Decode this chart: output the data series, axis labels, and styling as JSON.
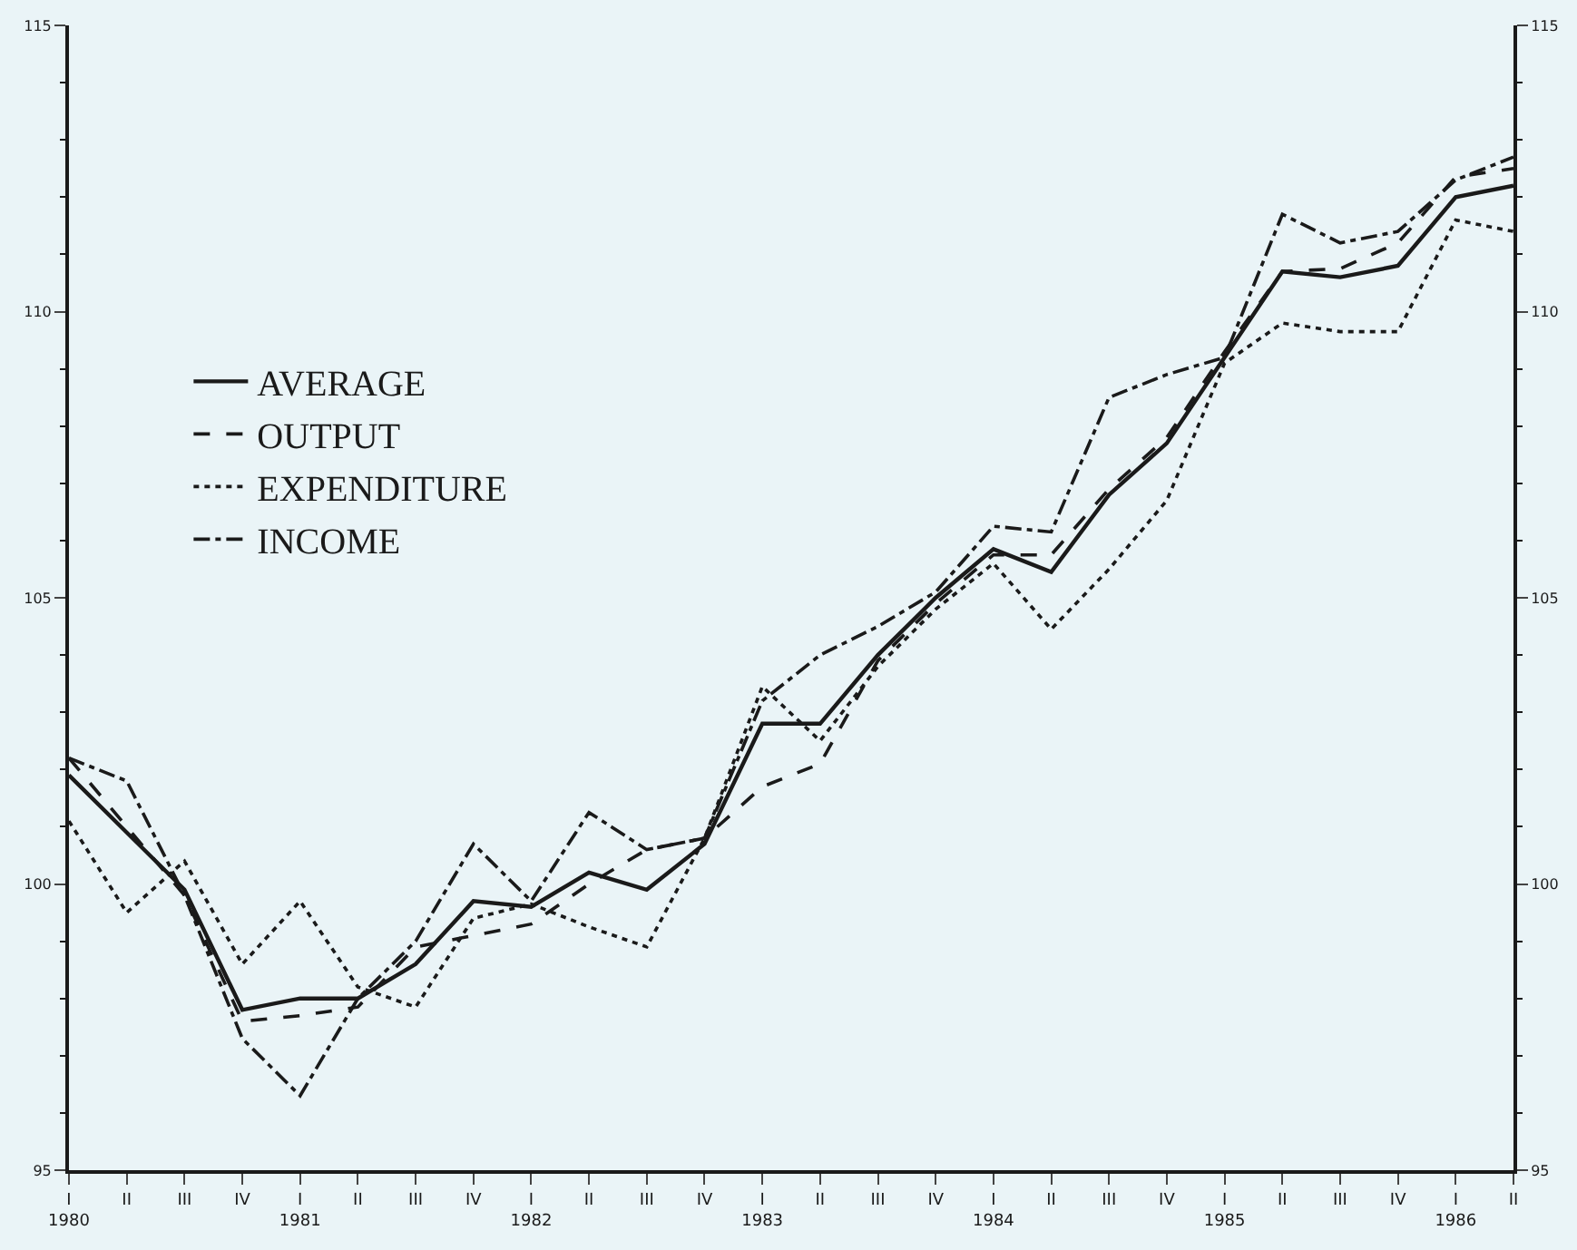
{
  "chart_data": {
    "type": "line",
    "categories": [
      "I\n1980",
      "II",
      "III",
      "IV",
      "I\n1981",
      "II",
      "III",
      "IV",
      "I\n1982",
      "II",
      "III",
      "IV",
      "I\n1983",
      "II",
      "III",
      "IV",
      "I\n1984",
      "II",
      "III",
      "IV",
      "I\n1985",
      "II",
      "III",
      "IV",
      "I\n1986",
      "II"
    ],
    "series": [
      {
        "name": "AVERAGE",
        "color": "#1a1a1a",
        "line_style": "solid",
        "values": [
          101.9,
          100.9,
          99.9,
          97.8,
          98.0,
          98.0,
          98.6,
          99.7,
          99.6,
          100.2,
          99.9,
          100.7,
          102.8,
          102.8,
          104.0,
          105.0,
          105.85,
          105.45,
          106.8,
          107.7,
          109.2,
          110.7,
          110.6,
          110.8,
          112.0,
          112.2
        ]
      },
      {
        "name": "OUTPUT",
        "color": "#1a1a1a",
        "line_style": "dashed",
        "values": [
          102.2,
          101.0,
          99.8,
          97.6,
          97.7,
          97.85,
          98.9,
          99.1,
          99.3,
          100.0,
          100.6,
          100.8,
          101.7,
          102.1,
          103.9,
          104.9,
          105.75,
          105.75,
          106.9,
          107.8,
          109.3,
          110.7,
          110.75,
          111.2,
          112.35,
          112.5
        ]
      },
      {
        "name": "EXPENDITURE",
        "color": "#1a1a1a",
        "line_style": "dotted",
        "values": [
          101.1,
          99.5,
          100.4,
          98.6,
          99.7,
          98.2,
          97.85,
          99.4,
          99.65,
          99.25,
          98.9,
          100.8,
          103.45,
          102.5,
          103.8,
          104.8,
          105.6,
          104.45,
          105.5,
          106.7,
          109.1,
          109.8,
          109.65,
          109.65,
          111.6,
          111.4
        ]
      },
      {
        "name": "INCOME",
        "color": "#1a1a1a",
        "line_style": "dashdot",
        "values": [
          102.2,
          101.8,
          99.8,
          97.3,
          96.3,
          98.0,
          99.0,
          100.7,
          99.7,
          101.25,
          100.6,
          100.8,
          103.2,
          104.0,
          104.5,
          105.1,
          106.25,
          106.15,
          108.5,
          108.9,
          109.2,
          111.7,
          111.2,
          111.4,
          112.3,
          112.7
        ]
      }
    ],
    "ylim": [
      95,
      115
    ],
    "yticks": [
      95,
      100,
      105,
      110,
      115
    ],
    "y2lim": [
      95,
      115
    ],
    "y2ticks": [
      95,
      100,
      105,
      110,
      115
    ],
    "grid": false,
    "legend": "left",
    "marker": "none"
  }
}
